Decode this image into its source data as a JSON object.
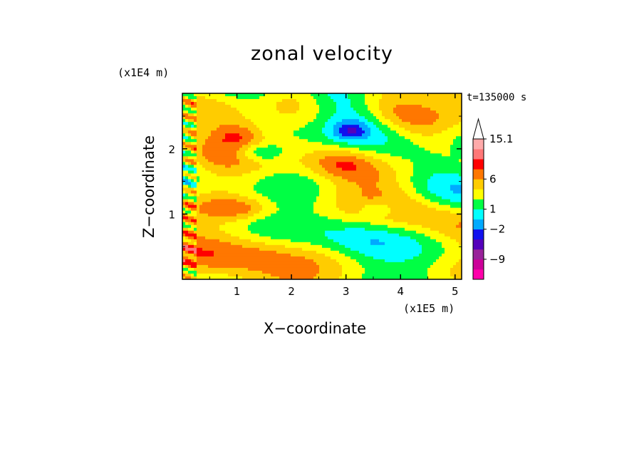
{
  "chart_data": {
    "type": "heatmap",
    "title": "zonal velocity",
    "xlabel": "X−coordinate",
    "ylabel": "Z−coordinate",
    "x_unit": "(x1E5 m)",
    "z_unit": "(x1E4 m)",
    "time_label": "t=135000 s",
    "xlim": [
      0,
      5.12
    ],
    "ylim": [
      0,
      2.85
    ],
    "x_ticks": [
      "1",
      "2",
      "3",
      "4",
      "5"
    ],
    "y_ticks": [
      "1",
      "2"
    ],
    "colorbar": {
      "levels": [
        -13,
        -11,
        -9,
        -7,
        -5,
        -2,
        -1,
        1,
        2,
        3,
        6,
        8,
        11,
        13,
        15.1
      ],
      "tick_labels": [
        "15.1",
        "6",
        "1",
        "−2",
        "−9"
      ],
      "colors": [
        "#ff00aa",
        "#cc0099",
        "#99229a",
        "#5500bb",
        "#1111ee",
        "#00aaff",
        "#00ffff",
        "#00ff44",
        "#ffff00",
        "#ffcc00",
        "#ff7700",
        "#ff0000",
        "#ff7777",
        "#ffaaaa"
      ]
    }
  }
}
